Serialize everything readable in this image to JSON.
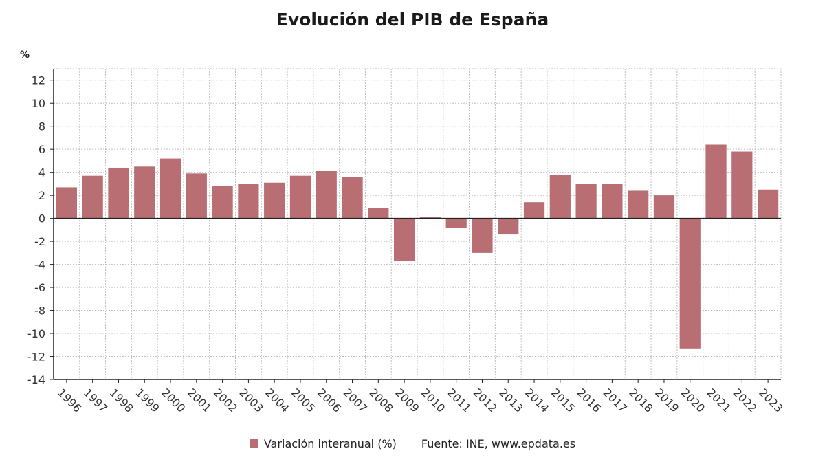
{
  "colors": {
    "bar": "#b86e73",
    "grid": "#bdbdbd",
    "axis": "#222222"
  },
  "chart_data": {
    "type": "bar",
    "title": "Evolución del PIB de España",
    "ylabel": "%",
    "xlabel": "",
    "ylim": [
      -14,
      13
    ],
    "yticks": [
      -14,
      -12,
      -10,
      -8,
      -6,
      -4,
      -2,
      0,
      2,
      4,
      6,
      8,
      10,
      12
    ],
    "grid": true,
    "categories": [
      "1996",
      "1997",
      "1998",
      "1999",
      "2000",
      "2001",
      "2002",
      "2003",
      "2004",
      "2005",
      "2006",
      "2007",
      "2008",
      "2009",
      "2010",
      "2011",
      "2012",
      "2013",
      "2014",
      "2015",
      "2016",
      "2017",
      "2018",
      "2019",
      "2020",
      "2021",
      "2022",
      "2023"
    ],
    "series": [
      {
        "name": "Variación interanual (%)",
        "values": [
          2.7,
          3.7,
          4.4,
          4.5,
          5.2,
          3.9,
          2.8,
          3.0,
          3.1,
          3.7,
          4.1,
          3.6,
          0.9,
          -3.7,
          0.1,
          -0.8,
          -3.0,
          -1.4,
          1.4,
          3.8,
          3.0,
          3.0,
          2.4,
          2.0,
          -11.3,
          6.4,
          5.8,
          2.5
        ]
      }
    ],
    "legend_position": "bottom",
    "source": "Fuente: INE, www.epdata.es"
  }
}
